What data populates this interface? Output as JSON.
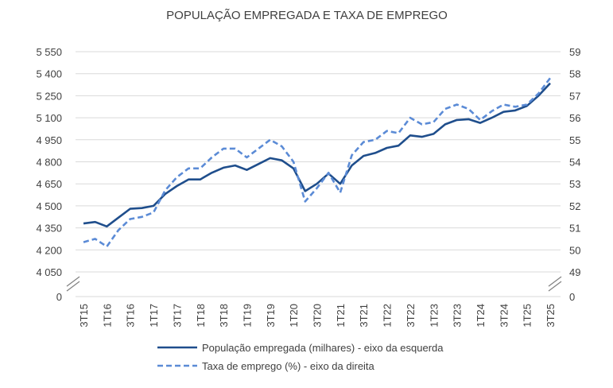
{
  "chart_data": {
    "type": "line",
    "title": "POPULAÇÃO EMPREGADA E TAXA DE EMPREGO",
    "x": [
      "3T15",
      "4T15",
      "1T16",
      "2T16",
      "3T16",
      "4T16",
      "1T17",
      "2T17",
      "3T17",
      "4T17",
      "1T18",
      "2T18",
      "3T18",
      "4T18",
      "1T19",
      "2T19",
      "3T19",
      "4T19",
      "1T20",
      "2T20",
      "3T20",
      "4T20",
      "1T21",
      "2T21",
      "3T21",
      "4T21",
      "1T22",
      "2T22",
      "3T22",
      "4T22",
      "1T23",
      "2T23",
      "3T23",
      "4T23",
      "1T24",
      "2T24",
      "3T24",
      "4T24",
      "1T25",
      "2T25",
      "3T25"
    ],
    "x_tick_labels": [
      "3T15",
      "1T16",
      "3T16",
      "1T17",
      "3T17",
      "1T18",
      "3T18",
      "1T19",
      "3T19",
      "1T20",
      "3T20",
      "1T21",
      "3T21",
      "1T22",
      "3T22",
      "1T23",
      "3T23",
      "1T24",
      "3T24",
      "1T25",
      "3T25"
    ],
    "y_left": {
      "ticks": [
        "5 550",
        "5 400",
        "5 250",
        "5 100",
        "4 950",
        "4 800",
        "4 650",
        "4 500",
        "4 350",
        "4 200",
        "4 050"
      ],
      "zero_label": "0",
      "range": [
        4050,
        5550
      ],
      "axis_break": true
    },
    "y_right": {
      "ticks": [
        "59",
        "58",
        "57",
        "56",
        "55",
        "54",
        "53",
        "52",
        "51",
        "50",
        "49"
      ],
      "zero_label": "0",
      "range": [
        49,
        59
      ],
      "axis_break": true
    },
    "grid": true,
    "legend_placement": "bottom",
    "series": [
      {
        "name": "População empregada (milhares) - eixo da esquerda",
        "axis": "left",
        "style": "solid",
        "color": "#1F4E8C",
        "values": [
          4380,
          4390,
          4360,
          4420,
          4480,
          4485,
          4500,
          4580,
          4635,
          4680,
          4680,
          4725,
          4760,
          4775,
          4745,
          4785,
          4825,
          4810,
          4755,
          4600,
          4650,
          4720,
          4650,
          4775,
          4840,
          4860,
          4895,
          4910,
          4980,
          4970,
          4990,
          5055,
          5085,
          5090,
          5065,
          5100,
          5140,
          5150,
          5180,
          5250,
          5335
        ]
      },
      {
        "name": "Taxa de emprego (%) - eixo da direita",
        "axis": "right",
        "style": "dashed",
        "color": "#5B8BD6",
        "values": [
          50.35,
          50.5,
          50.15,
          50.9,
          51.4,
          51.5,
          51.7,
          52.7,
          53.3,
          53.7,
          53.7,
          54.2,
          54.6,
          54.6,
          54.2,
          54.6,
          55.0,
          54.7,
          54.0,
          52.2,
          52.8,
          53.5,
          52.6,
          54.3,
          54.9,
          55.0,
          55.4,
          55.3,
          56.0,
          55.7,
          55.8,
          56.4,
          56.6,
          56.4,
          55.9,
          56.3,
          56.6,
          56.5,
          56.6,
          57.1,
          57.8
        ]
      }
    ]
  }
}
